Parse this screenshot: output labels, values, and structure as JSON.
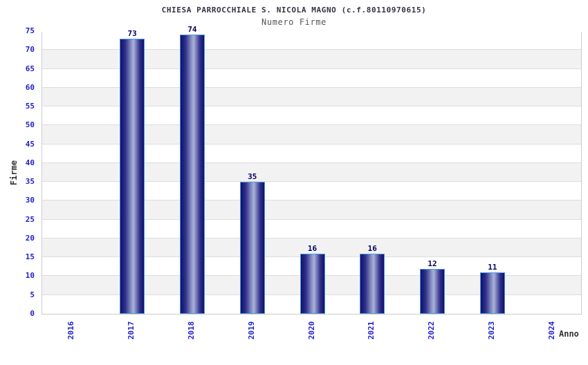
{
  "chart_data": {
    "type": "bar",
    "title": "CHIESA PARROCCHIALE S. NICOLA MAGNO (c.f.80110970615)",
    "subtitle": "Numero Firme",
    "xlabel": "Anno",
    "ylabel": "Firme",
    "categories": [
      "2016",
      "2017",
      "2018",
      "2019",
      "2020",
      "2021",
      "2022",
      "2023",
      "2024"
    ],
    "values": [
      0,
      73,
      74,
      35,
      16,
      16,
      12,
      11,
      0
    ],
    "ylim": [
      0,
      75
    ],
    "ytick_step": 5,
    "grid": true,
    "legend": "none",
    "colors": {
      "bar_dark": "#10106a",
      "bar_mid": "#32328e",
      "bar_light": "#aab2d8",
      "bar_border": "#4a9be0",
      "tick_label": "#2121cd",
      "value_label": "#000066",
      "title": "#333344",
      "subtitle": "#555555",
      "axis_label": "#333333",
      "band_gray": "#f2f2f2",
      "band_white": "#ffffff",
      "gridline": "#dddddd",
      "plot_border": "#cccccc"
    }
  }
}
